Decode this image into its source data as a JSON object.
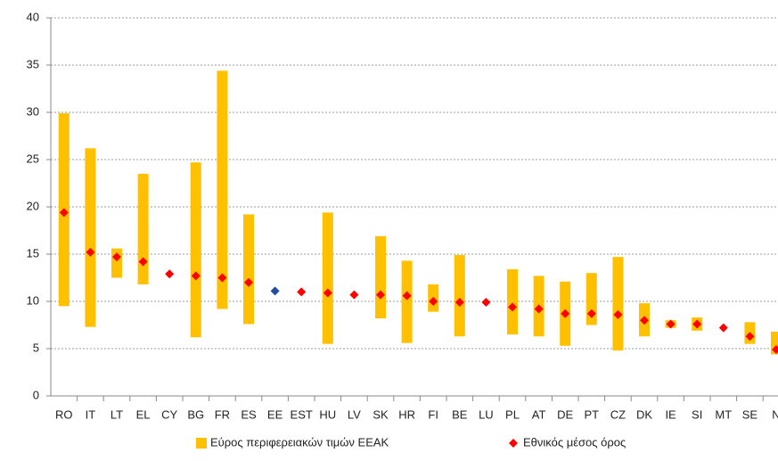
{
  "chart_data": {
    "type": "range",
    "categories": [
      "RO",
      "IT",
      "LT",
      "EL",
      "CY",
      "BG",
      "FR",
      "ES",
      "EE",
      "EST",
      "HU",
      "LV",
      "SK",
      "HR",
      "FI",
      "BE",
      "LU",
      "PL",
      "AT",
      "DE",
      "PT",
      "CZ",
      "DK",
      "IE",
      "SI",
      "MT",
      "SE",
      "N"
    ],
    "range_series": {
      "name": "Εύρος περιφερειακών τιμών ΕΕΑΚ",
      "color": "#ffc000",
      "low": [
        9.5,
        7.3,
        12.5,
        11.8,
        null,
        6.2,
        9.2,
        7.6,
        null,
        null,
        5.5,
        null,
        8.2,
        5.6,
        8.9,
        6.3,
        null,
        6.5,
        6.3,
        5.3,
        7.5,
        4.8,
        6.3,
        7.2,
        6.9,
        null,
        5.5,
        4.4
      ],
      "high": [
        29.9,
        26.2,
        15.6,
        23.5,
        null,
        24.7,
        34.4,
        19.2,
        null,
        null,
        19.4,
        null,
        16.9,
        14.3,
        11.8,
        14.9,
        null,
        13.4,
        12.7,
        12.1,
        13.0,
        14.7,
        9.8,
        8.0,
        8.3,
        null,
        7.8,
        6.8
      ]
    },
    "point_series": {
      "name": "Εθνικός μέσος όρος",
      "color": "#ff0000",
      "values": [
        19.4,
        15.2,
        14.7,
        14.2,
        12.9,
        12.7,
        12.5,
        12.0,
        11.1,
        11.0,
        10.9,
        10.7,
        10.7,
        10.6,
        10.0,
        9.9,
        9.9,
        9.4,
        9.2,
        8.7,
        8.7,
        8.6,
        8.0,
        7.6,
        7.6,
        7.2,
        6.3,
        4.9
      ],
      "highlight_category": "EE",
      "highlight_color": "#1f4e9c"
    },
    "ylim": [
      0,
      40
    ],
    "yticks": [
      0,
      5,
      10,
      15,
      20,
      25,
      30,
      35,
      40
    ],
    "grid": true
  }
}
